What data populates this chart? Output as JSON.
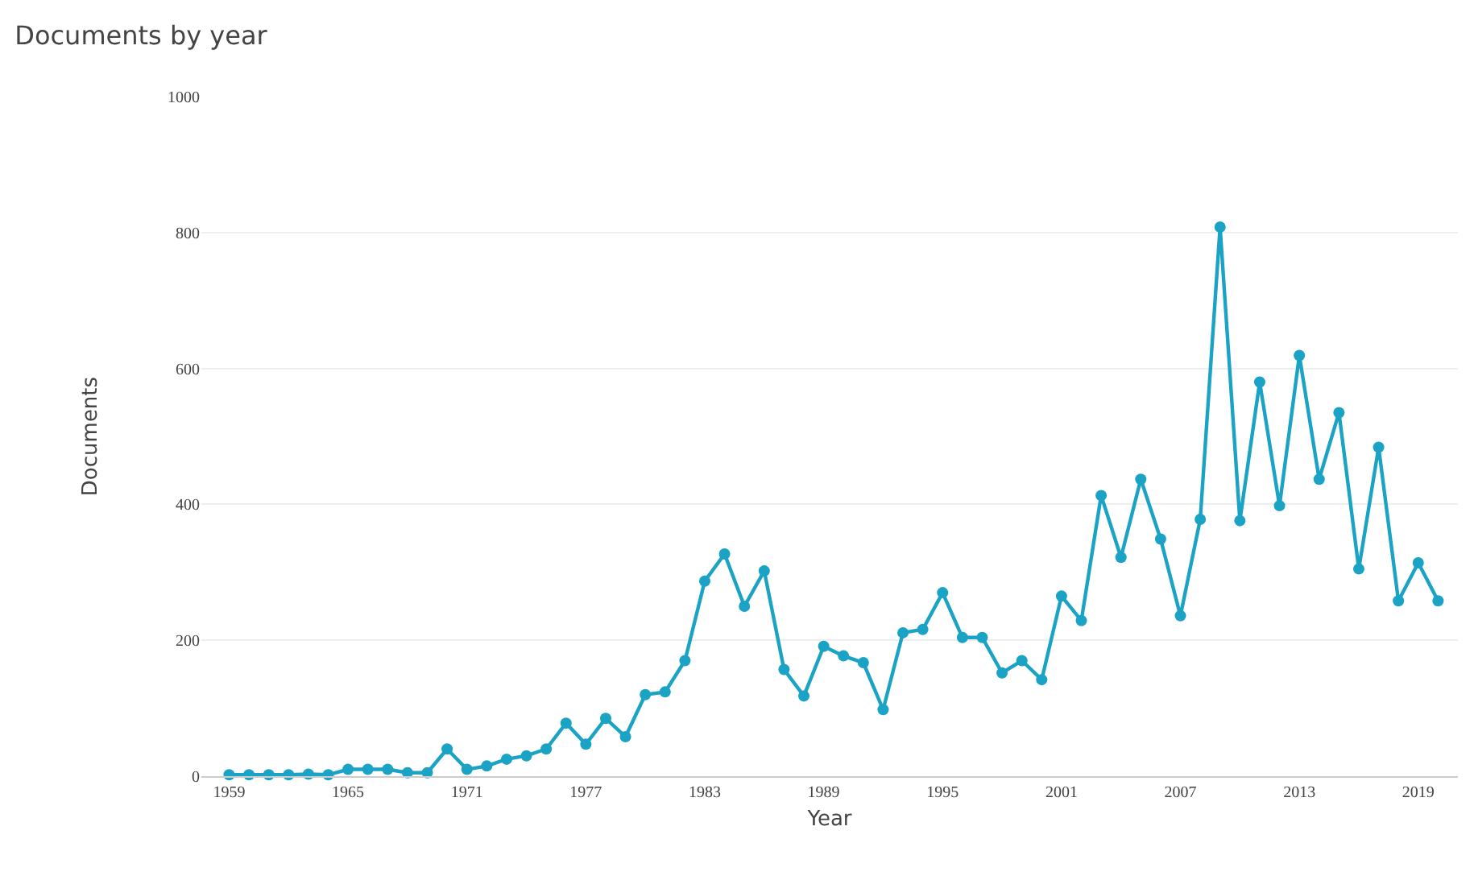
{
  "chart_data": {
    "type": "line",
    "title": "Documents by year",
    "xlabel": "Year",
    "ylabel": "Documents",
    "x": [
      1959,
      1960,
      1961,
      1962,
      1963,
      1964,
      1965,
      1966,
      1967,
      1968,
      1969,
      1970,
      1971,
      1972,
      1973,
      1974,
      1975,
      1976,
      1977,
      1978,
      1979,
      1980,
      1981,
      1982,
      1983,
      1984,
      1985,
      1986,
      1987,
      1988,
      1989,
      1990,
      1991,
      1992,
      1993,
      1994,
      1995,
      1996,
      1997,
      1998,
      1999,
      2000,
      2001,
      2002,
      2003,
      2004,
      2005,
      2006,
      2007,
      2008,
      2009,
      2010,
      2011,
      2012,
      2013,
      2014,
      2015,
      2016,
      2017,
      2018,
      2019,
      2020
    ],
    "series": [
      {
        "color": "#1ba3c6",
        "values": [
          2,
          2,
          2,
          2,
          3,
          2,
          10,
          10,
          10,
          5,
          5,
          40,
          10,
          15,
          25,
          30,
          40,
          78,
          47,
          85,
          58,
          120,
          124,
          170,
          287,
          327,
          250,
          302,
          157,
          118,
          191,
          177,
          167,
          98,
          211,
          216,
          270,
          204,
          204,
          152,
          170,
          142,
          265,
          229,
          413,
          322,
          437,
          349,
          236,
          378,
          808,
          376,
          580,
          398,
          619,
          437,
          535,
          305,
          484,
          258,
          314,
          258
        ]
      }
    ],
    "xlim": [
      1957.6,
      2021
    ],
    "xticks": [
      1959,
      1965,
      1971,
      1977,
      1983,
      1989,
      1995,
      2001,
      2007,
      2013,
      2019
    ],
    "ylim": [
      0,
      1000
    ],
    "yticks": [
      0,
      200,
      400,
      600,
      800,
      1000
    ],
    "grid": "y",
    "marker": "circle",
    "line_style": "solid"
  }
}
